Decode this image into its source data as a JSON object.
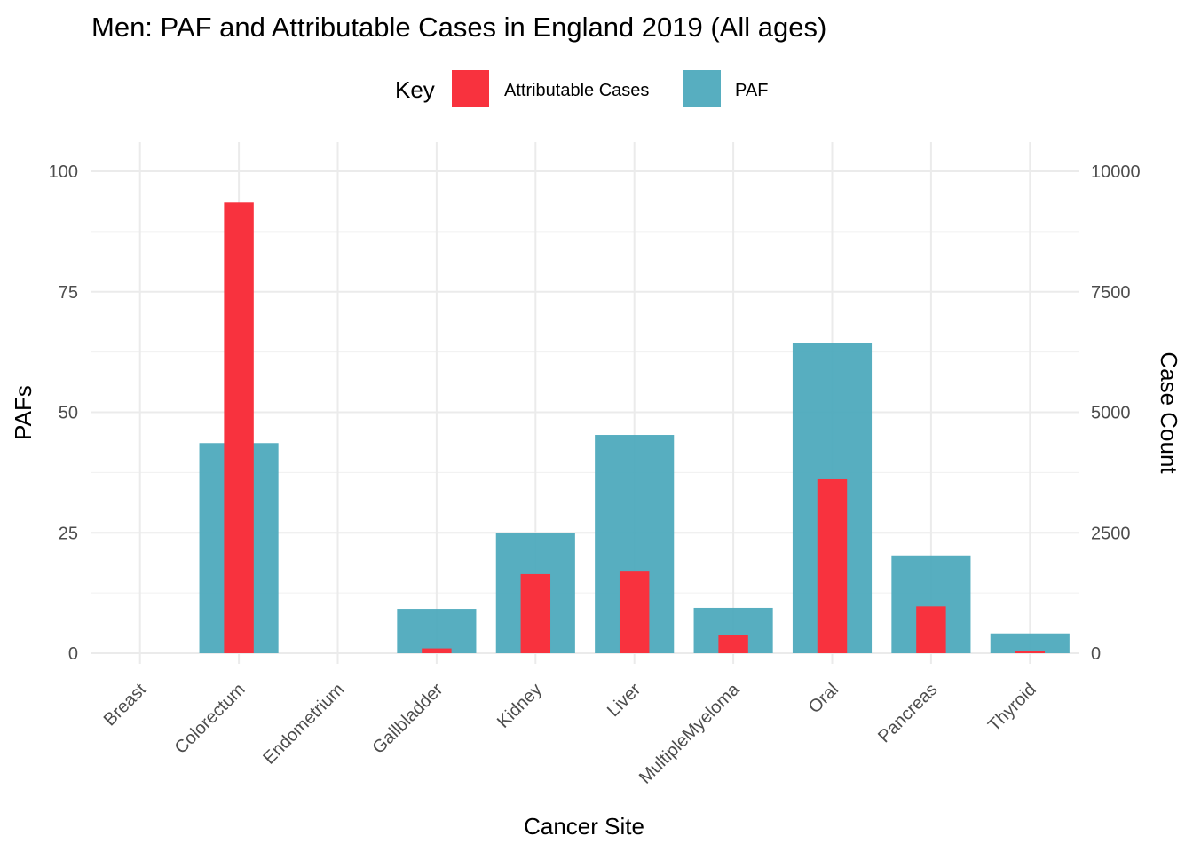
{
  "chart_data": {
    "type": "bar",
    "title": "Men: PAF and Attributable Cases in England 2019 (All ages)",
    "xlabel": "Cancer Site",
    "ylabel": "PAFs",
    "y2label": "Case Count",
    "categories": [
      "Breast",
      "Colorectum",
      "Endometrium",
      "Gallbladder",
      "Kidney",
      "Liver",
      "MultipleMyeloma",
      "Oral",
      "Pancreas",
      "Thyroid"
    ],
    "ylim": [
      0,
      100
    ],
    "y2lim": [
      0,
      10000
    ],
    "yticks": [
      "0",
      "25",
      "50",
      "75",
      "100"
    ],
    "y2ticks": [
      "0",
      "2500",
      "5000",
      "7500",
      "10000"
    ],
    "legend": {
      "title": "Key",
      "placement": "top",
      "entries": [
        "Attributable Cases",
        "PAF"
      ]
    },
    "grid": true,
    "series": [
      {
        "name": "PAF",
        "axis": "left",
        "color": "#4aa8bb",
        "values": [
          0,
          43.6,
          0,
          9.2,
          24.9,
          45.3,
          9.4,
          64.3,
          20.3,
          4.1
        ]
      },
      {
        "name": "Attributable Cases",
        "axis": "right",
        "color": "#f8323e",
        "values": [
          0,
          9350,
          0,
          100,
          1640,
          1710,
          370,
          3610,
          970,
          40
        ]
      }
    ]
  }
}
